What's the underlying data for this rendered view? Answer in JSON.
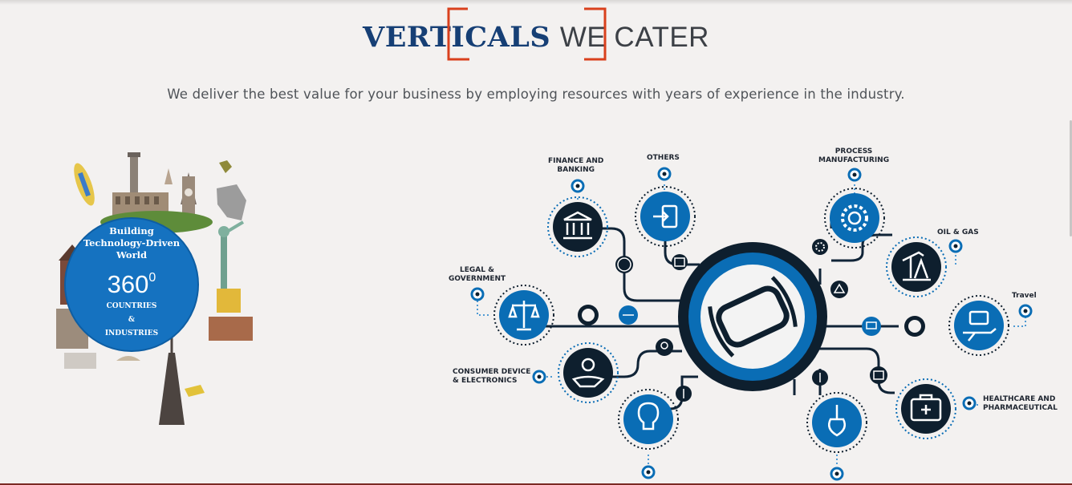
{
  "heading": {
    "part1": "VERTICALS",
    "part2": "WE CATER"
  },
  "subtitle": "We deliver the best value for your business by employing resources with years of experience in the industry.",
  "globe": {
    "line1": "Building",
    "line2": "Technology-Driven",
    "line3": "World",
    "number": "360",
    "superscript": "0",
    "countries": "COUNTRIES",
    "ampersand": "&",
    "industries": "INDUSTRIES"
  },
  "verticals": {
    "finance": [
      "FINANCE AND",
      "BANKING"
    ],
    "others": [
      "OTHERS"
    ],
    "process": [
      "PROCESS",
      "MANUFACTURING"
    ],
    "oil": [
      "OIL & GAS"
    ],
    "legal": [
      "LEGAL &",
      "GOVERNMENT"
    ],
    "travel": [
      "Travel"
    ],
    "consumer": [
      "CONSUMER DEVICE",
      "& ELECTRONICS"
    ],
    "healthcare": [
      "HEALTHCARE AND",
      "PHARMACEUTICAL"
    ]
  },
  "colors": {
    "navy": "#163f75",
    "accent_red": "#d9401d",
    "node_blue": "#0a6db5",
    "node_dark": "#0e1f2e",
    "globe_blue": "#1572c0"
  }
}
